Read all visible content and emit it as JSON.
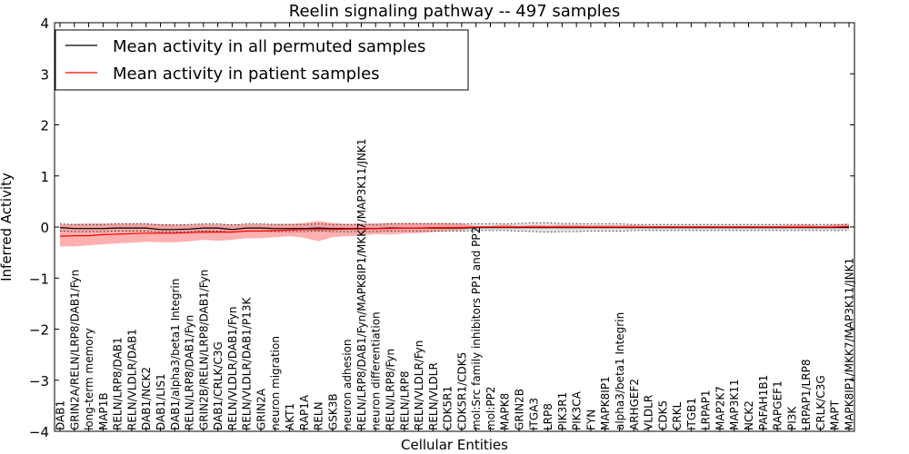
{
  "chart_data": {
    "type": "line",
    "title": "Reelin signaling pathway -- 497 samples",
    "xlabel": "Cellular Entities",
    "ylabel": "Inferred Activity",
    "ylim": [
      -4,
      4
    ],
    "yticks": [
      "4",
      "3",
      "2",
      "1",
      "0",
      "−1",
      "−2",
      "−3",
      "−4"
    ],
    "legend_position": "top-left",
    "categories": [
      "DAB1",
      "GRIN2A/RELN/LRP8/DAB1/Fyn",
      "long-term memory",
      "MAP1B",
      "RELN/LRP8/DAB1",
      "RELN/VLDLR/DAB1",
      "DAB1/NCK2",
      "DAB1/LIS1",
      "DAB1/alpha3/beta1 Integrin",
      "RELN/LRP8/DAB1/Fyn",
      "GRIN2B/RELN/LRP8/DAB1/Fyn",
      "DAB1/CRLK/C3G",
      "RELN/VLDLR/DAB1/Fyn",
      "RELN/VLDLR/DAB1/P13K",
      "GRIN2A",
      "neuron migration",
      "AKT1",
      "RAP1A",
      "RELN",
      "GSK3B",
      "neuron adhesion",
      "RELN/LRP8/DAB1/Fyn/MAPK8IP1/MKK7/MAP3K11/JNK1",
      "neuron differentiation",
      "RELN/LRP8/Fyn",
      "RELN/LRP8",
      "RELN/VLDLR/Fyn",
      "RELN/VLDLR",
      "CDK5R1",
      "CDK5R1/CDK5",
      "mol:Src family inhibitors PP1 and PP2",
      "mol:PP2",
      "MAPK8",
      "GRIN2B",
      "ITGA3",
      "LRP8",
      "PIK3R1",
      "PIK3CA",
      "FYN",
      "MAPK8IP1",
      "alpha3/beta1 Integrin",
      "ARHGEF2",
      "VLDLR",
      "CDK5",
      "CRKL",
      "ITGB1",
      "LRPAP1",
      "MAP2K7",
      "MAP3K11",
      "NCK2",
      "PAFAH1B1",
      "RAPGEF1",
      "PI3K",
      "LRPAP1/LRP8",
      "CRLK/C3G",
      "MAPT",
      "MAPK8IP1/MKK7/MAP3K11/JNK1"
    ],
    "series": [
      {
        "name": "Mean activity in all permuted samples",
        "color": "#000000",
        "values": [
          -0.01,
          -0.03,
          -0.03,
          -0.03,
          -0.02,
          -0.02,
          -0.02,
          -0.05,
          -0.05,
          -0.04,
          -0.02,
          -0.02,
          -0.05,
          -0.02,
          -0.02,
          -0.03,
          -0.03,
          -0.03,
          -0.02,
          -0.03,
          -0.03,
          -0.03,
          -0.03,
          -0.02,
          -0.02,
          -0.02,
          -0.02,
          -0.02,
          -0.02,
          -0.01,
          -0.01,
          -0.01,
          -0.01,
          -0.01,
          -0.01,
          -0.01,
          -0.01,
          -0.01,
          -0.01,
          -0.01,
          -0.01,
          -0.01,
          -0.01,
          -0.01,
          -0.01,
          -0.01,
          -0.01,
          -0.01,
          -0.01,
          -0.01,
          -0.01,
          -0.01,
          -0.01,
          -0.01,
          -0.01,
          -0.01
        ],
        "band_lower": [
          -0.08,
          -0.09,
          -0.09,
          -0.09,
          -0.08,
          -0.08,
          -0.08,
          -0.1,
          -0.1,
          -0.09,
          -0.08,
          -0.08,
          -0.1,
          -0.08,
          -0.08,
          -0.09,
          -0.09,
          -0.09,
          -0.08,
          -0.09,
          -0.09,
          -0.09,
          -0.09,
          -0.08,
          -0.08,
          -0.08,
          -0.08,
          -0.08,
          -0.08,
          -0.07,
          -0.07,
          -0.07,
          -0.08,
          -0.09,
          -0.1,
          -0.09,
          -0.09,
          -0.08,
          -0.08,
          -0.08,
          -0.07,
          -0.07,
          -0.07,
          -0.07,
          -0.07,
          -0.07,
          -0.07,
          -0.07,
          -0.07,
          -0.07,
          -0.07,
          -0.07,
          -0.07,
          -0.07,
          -0.07,
          -0.07
        ],
        "band_upper": [
          0.06,
          0.05,
          0.05,
          0.05,
          0.06,
          0.06,
          0.06,
          0.04,
          0.04,
          0.05,
          0.06,
          0.06,
          0.04,
          0.06,
          0.06,
          0.05,
          0.05,
          0.05,
          0.06,
          0.05,
          0.05,
          0.05,
          0.05,
          0.06,
          0.06,
          0.06,
          0.06,
          0.06,
          0.06,
          0.06,
          0.06,
          0.06,
          0.07,
          0.08,
          0.08,
          0.07,
          0.07,
          0.06,
          0.06,
          0.06,
          0.05,
          0.05,
          0.05,
          0.05,
          0.05,
          0.05,
          0.05,
          0.05,
          0.05,
          0.05,
          0.05,
          0.05,
          0.05,
          0.05,
          0.05,
          0.05
        ]
      },
      {
        "name": "Mean activity in patient samples",
        "color": "#ff0000",
        "values": [
          -0.18,
          -0.17,
          -0.17,
          -0.15,
          -0.14,
          -0.13,
          -0.12,
          -0.12,
          -0.12,
          -0.11,
          -0.1,
          -0.1,
          -0.1,
          -0.08,
          -0.08,
          -0.07,
          -0.06,
          -0.05,
          -0.05,
          -0.05,
          -0.04,
          -0.04,
          -0.03,
          -0.03,
          -0.02,
          -0.02,
          -0.01,
          -0.01,
          -0.01,
          0.0,
          0.0,
          0.0,
          0.0,
          0.0,
          0.0,
          0.0,
          0.0,
          0.0,
          0.0,
          0.0,
          0.0,
          0.0,
          0.0,
          0.0,
          0.0,
          0.0,
          0.0,
          0.0,
          0.0,
          0.0,
          0.0,
          0.0,
          0.0,
          0.0,
          0.0,
          0.01
        ],
        "band_lower": [
          -0.38,
          -0.38,
          -0.36,
          -0.34,
          -0.32,
          -0.31,
          -0.29,
          -0.3,
          -0.3,
          -0.28,
          -0.25,
          -0.27,
          -0.25,
          -0.22,
          -0.22,
          -0.2,
          -0.18,
          -0.21,
          -0.28,
          -0.2,
          -0.18,
          -0.17,
          -0.14,
          -0.15,
          -0.13,
          -0.12,
          -0.1,
          -0.08,
          -0.07,
          -0.01,
          -0.01,
          -0.02,
          -0.01,
          -0.02,
          -0.02,
          -0.02,
          -0.02,
          -0.02,
          -0.02,
          -0.02,
          -0.02,
          -0.02,
          -0.02,
          -0.02,
          -0.02,
          -0.02,
          -0.02,
          -0.02,
          -0.02,
          -0.02,
          -0.02,
          -0.02,
          -0.02,
          -0.02,
          -0.02,
          -0.01
        ],
        "band_upper": [
          0.05,
          0.06,
          0.07,
          0.07,
          0.07,
          0.07,
          0.07,
          0.06,
          0.05,
          0.05,
          0.06,
          0.06,
          0.05,
          0.06,
          0.06,
          0.06,
          0.06,
          0.08,
          0.12,
          0.08,
          0.06,
          0.07,
          0.07,
          0.08,
          0.08,
          0.08,
          0.08,
          0.08,
          0.07,
          0.01,
          0.02,
          0.05,
          0.02,
          0.04,
          0.03,
          0.04,
          0.04,
          0.03,
          0.03,
          0.03,
          0.04,
          0.02,
          0.02,
          0.02,
          0.02,
          0.02,
          0.02,
          0.02,
          0.02,
          0.02,
          0.02,
          0.04,
          0.05,
          0.02,
          0.05,
          0.07
        ]
      }
    ]
  }
}
